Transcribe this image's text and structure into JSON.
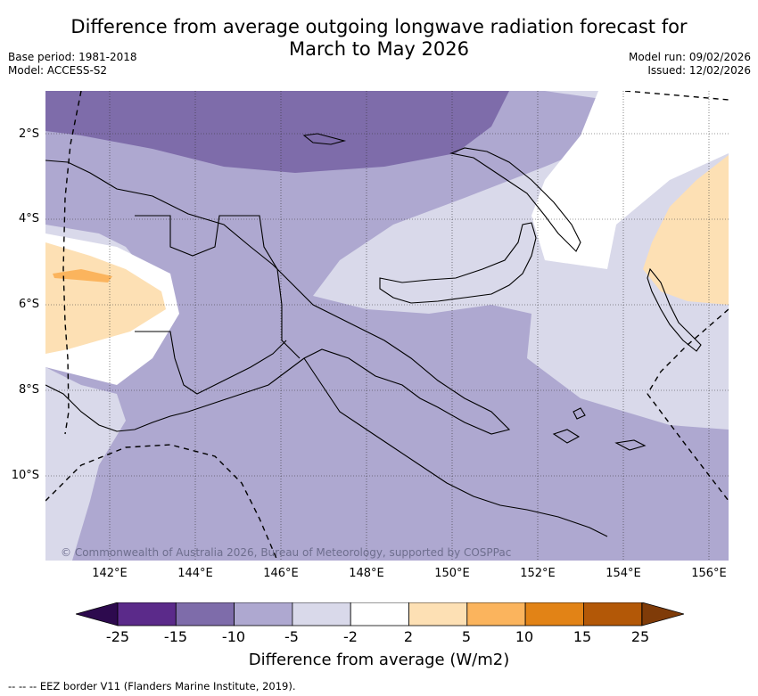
{
  "title_line1": "Difference from average outgoing longwave radiation forecast for",
  "title_line2": "March to May 2026",
  "meta_left": {
    "base_period": "Base period: 1981-2018",
    "model": "Model: ACCESS-S2"
  },
  "meta_right": {
    "model_run": "Model run: 09/02/2026",
    "issued": "Issued: 12/02/2026"
  },
  "latitude_labels": [
    "2°S",
    "4°S",
    "6°S",
    "8°S",
    "10°S"
  ],
  "longitude_labels": [
    "142°E",
    "144°E",
    "146°E",
    "148°E",
    "150°E",
    "152°E",
    "154°E",
    "156°E"
  ],
  "copyright": "© Commonwealth of Australia 2026, Bureau of Meteorology, supported by COSPPac",
  "colorbar": {
    "ticks": [
      "-25",
      "-15",
      "-10",
      "-5",
      "-2",
      "2",
      "5",
      "10",
      "15",
      "25"
    ],
    "colors": [
      "#5b2a8a",
      "#7e6caa",
      "#aea8d0",
      "#d9d9ea",
      "#ffffff",
      "#fde0b4",
      "#fbb45d",
      "#e28316",
      "#b35807"
    ],
    "under_color": "#2d0a4e",
    "over_color": "#7f3b08",
    "label": "Difference from average (W/m2)"
  },
  "legend_footer": "-- -- -- EEZ border V11 (Flanders Marine Institute, 2019)."
}
